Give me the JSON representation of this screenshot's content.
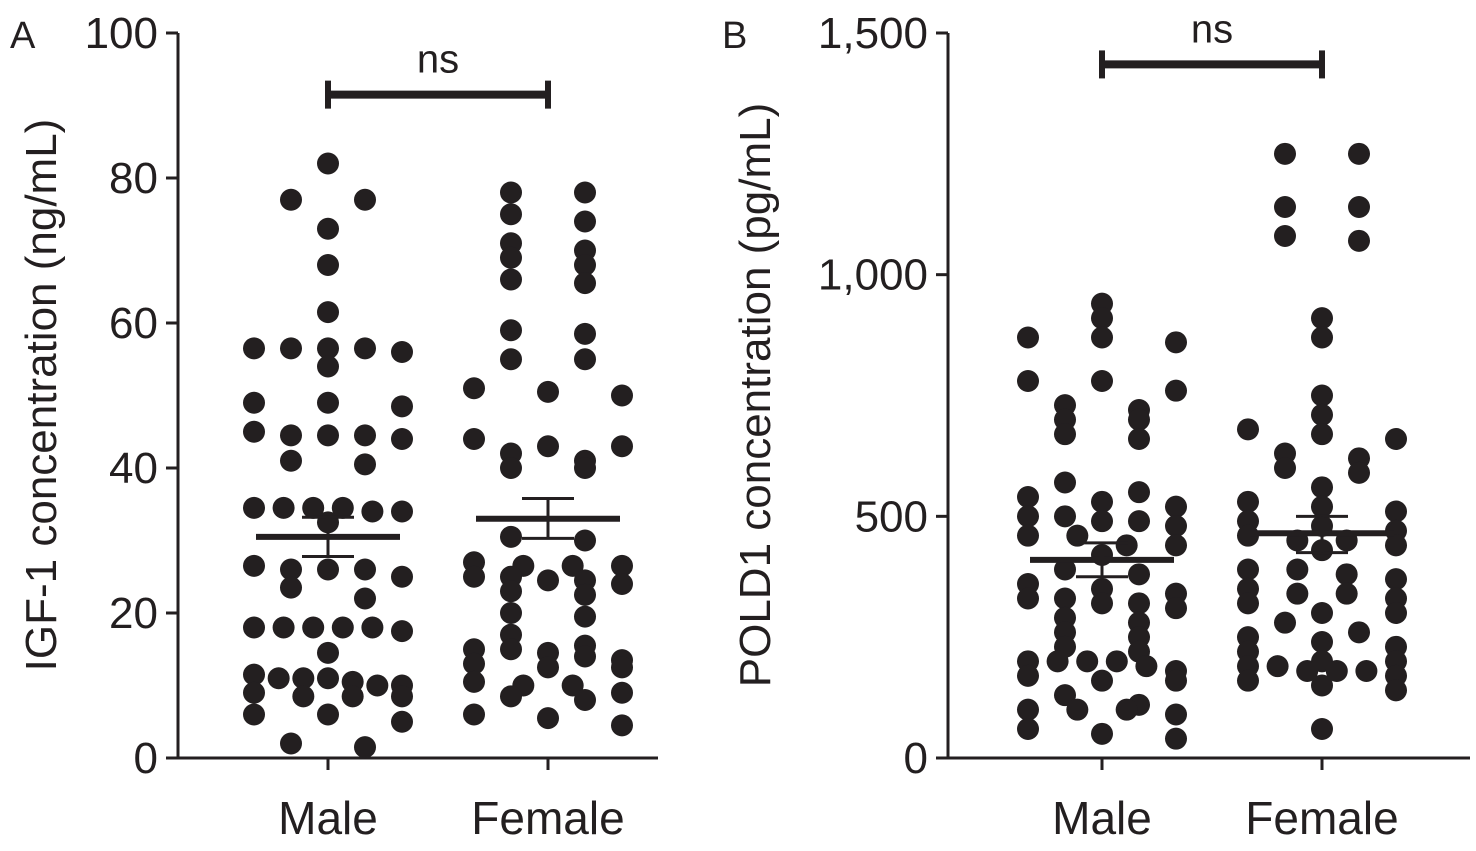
{
  "chart_data": [
    {
      "type": "scatter",
      "panel_label": "A",
      "ylabel": "IGF-1 concentration (ng/mL)",
      "xlabel": "",
      "ylim": [
        0,
        100
      ],
      "yticks": [
        0,
        20,
        40,
        60,
        80,
        100
      ],
      "ytick_labels": [
        "0",
        "20",
        "40",
        "60",
        "80",
        "100"
      ],
      "categories": [
        "Male",
        "Female"
      ],
      "grid": false,
      "legend": "none",
      "point_color": "#231f20",
      "significance": {
        "label": "ns",
        "y": 91.5
      },
      "series": [
        {
          "category": "Male",
          "mean": 30.5,
          "sem_low": 27.8,
          "sem_high": 33.2,
          "values": [
            82,
            77,
            77,
            73,
            68,
            61.5,
            56.5,
            56.5,
            56.5,
            56.5,
            56,
            54,
            49,
            49,
            48.5,
            45,
            44.5,
            44.5,
            44.5,
            44,
            41,
            40.5,
            34.5,
            34.5,
            34.5,
            34.5,
            34,
            34,
            32.5,
            26.5,
            26,
            26,
            26,
            25,
            23.5,
            22,
            18,
            18,
            18,
            18,
            18,
            17.5,
            14.5,
            11.5,
            11,
            11,
            11,
            10.5,
            10,
            10,
            9,
            8.5,
            8.5,
            8.5,
            6,
            6,
            5,
            2,
            1.5
          ]
        },
        {
          "category": "Female",
          "mean": 33.0,
          "sem_low": 30.3,
          "sem_high": 35.8,
          "values": [
            78,
            78,
            75,
            74,
            71,
            70,
            69,
            68,
            66,
            65.5,
            59,
            58.5,
            55,
            55,
            51,
            50.5,
            50,
            44,
            43,
            43,
            42,
            41,
            40,
            40,
            30.5,
            30,
            27,
            26.5,
            26.5,
            26.5,
            25,
            25,
            24.5,
            24.5,
            24,
            23,
            22.5,
            20,
            19.5,
            17,
            15.5,
            15,
            15,
            14.5,
            14,
            13.5,
            13,
            12.5,
            12.5,
            10.5,
            10,
            10,
            9,
            8.5,
            8,
            6,
            5.5,
            4.5
          ]
        }
      ]
    },
    {
      "type": "scatter",
      "panel_label": "B",
      "ylabel": "POLD1 concentration (pg/mL)",
      "xlabel": "",
      "ylim": [
        0,
        1500
      ],
      "yticks": [
        0,
        500,
        1000,
        1500
      ],
      "ytick_labels": [
        "0",
        "500",
        "1,000",
        "1,500"
      ],
      "categories": [
        "Male",
        "Female"
      ],
      "grid": false,
      "legend": "none",
      "point_color": "#231f20",
      "significance": {
        "label": "ns",
        "y": 1435
      },
      "series": [
        {
          "category": "Male",
          "mean": 410,
          "sem_low": 375,
          "sem_high": 445,
          "values": [
            940,
            910,
            870,
            870,
            860,
            780,
            780,
            760,
            730,
            720,
            700,
            700,
            670,
            660,
            570,
            550,
            540,
            530,
            520,
            500,
            500,
            490,
            490,
            480,
            460,
            460,
            440,
            440,
            420,
            390,
            380,
            360,
            350,
            340,
            330,
            330,
            320,
            320,
            310,
            290,
            280,
            260,
            250,
            230,
            220,
            200,
            200,
            200,
            200,
            190,
            180,
            170,
            160,
            160,
            130,
            110,
            100,
            100,
            100,
            90,
            60,
            50,
            40
          ]
        },
        {
          "category": "Female",
          "mean": 465,
          "sem_low": 425,
          "sem_high": 500,
          "values": [
            1250,
            1250,
            1140,
            1140,
            1080,
            1070,
            910,
            870,
            750,
            710,
            680,
            670,
            660,
            630,
            620,
            600,
            590,
            560,
            530,
            520,
            510,
            490,
            480,
            470,
            460,
            450,
            450,
            440,
            430,
            390,
            390,
            380,
            370,
            350,
            340,
            340,
            330,
            320,
            300,
            300,
            280,
            260,
            250,
            240,
            230,
            220,
            200,
            200,
            190,
            190,
            180,
            180,
            180,
            170,
            160,
            150,
            140,
            60
          ]
        }
      ]
    }
  ]
}
